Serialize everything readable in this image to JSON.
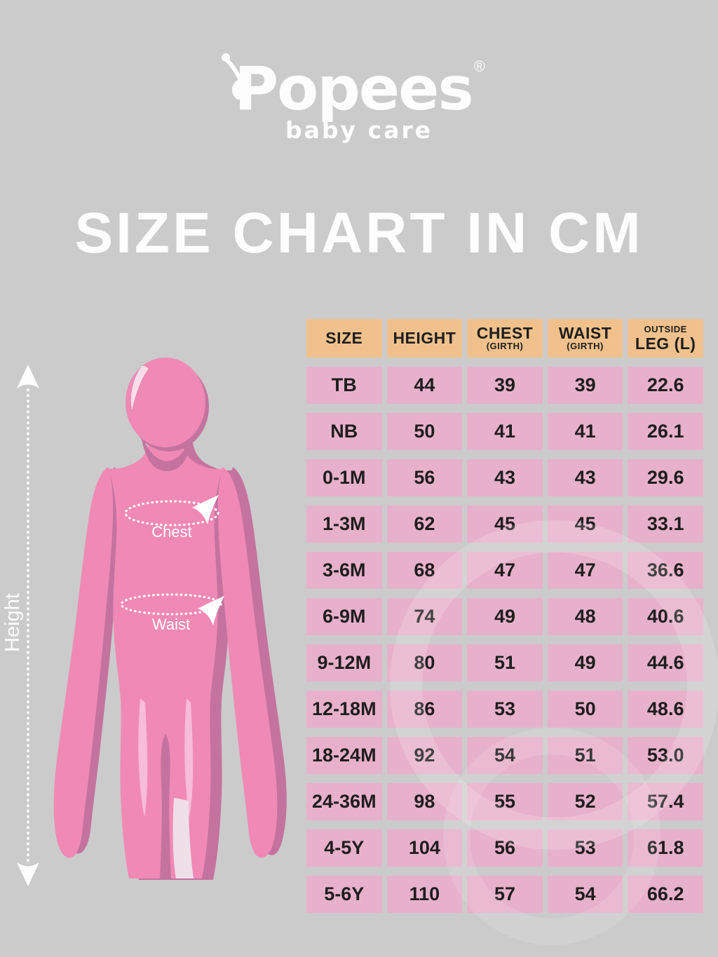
{
  "brand": {
    "name": "Popees",
    "registered_mark": "®",
    "tagline": "baby care"
  },
  "title": "SIZE CHART IN CM",
  "figure": {
    "height_label": "Height",
    "chest_label": "Chest",
    "waist_label": "Waist"
  },
  "table": {
    "headers": [
      {
        "top": "",
        "main": "SIZE",
        "sub": ""
      },
      {
        "top": "",
        "main": "HEIGHT",
        "sub": ""
      },
      {
        "top": "",
        "main": "CHEST",
        "sub": "(GIRTH)"
      },
      {
        "top": "",
        "main": "WAIST",
        "sub": "(GIRTH)"
      },
      {
        "top": "OUTSIDE",
        "main": "LEG (L)",
        "sub": ""
      }
    ]
  },
  "chart_data": {
    "type": "table",
    "title": "SIZE CHART IN CM",
    "unit": "cm",
    "columns": [
      "SIZE",
      "HEIGHT",
      "CHEST (GIRTH)",
      "WAIST (GIRTH)",
      "OUTSIDE LEG (L)"
    ],
    "rows": [
      [
        "TB",
        "44",
        "39",
        "39",
        "22.6"
      ],
      [
        "NB",
        "50",
        "41",
        "41",
        "26.1"
      ],
      [
        "0-1M",
        "56",
        "43",
        "43",
        "29.6"
      ],
      [
        "1-3M",
        "62",
        "45",
        "45",
        "33.1"
      ],
      [
        "3-6M",
        "68",
        "47",
        "47",
        "36.6"
      ],
      [
        "6-9M",
        "74",
        "49",
        "48",
        "40.6"
      ],
      [
        "9-12M",
        "80",
        "51",
        "49",
        "44.6"
      ],
      [
        "12-18M",
        "86",
        "53",
        "50",
        "48.6"
      ],
      [
        "18-24M",
        "92",
        "54",
        "51",
        "53.0"
      ],
      [
        "24-36M",
        "98",
        "55",
        "52",
        "57.4"
      ],
      [
        "4-5Y",
        "104",
        "56",
        "53",
        "61.8"
      ],
      [
        "5-6Y",
        "110",
        "57",
        "54",
        "66.2"
      ]
    ]
  },
  "colors": {
    "background": "#cbcbcb",
    "header_cell": "#f0c18c",
    "data_cell": "#e8b1cb",
    "cell_text": "#1e1e1e",
    "white_text": "#fdfdfd",
    "figure_pink": "#f089b5",
    "figure_shadow": "#c4739e",
    "figure_highlight": "#f6bcd8"
  }
}
